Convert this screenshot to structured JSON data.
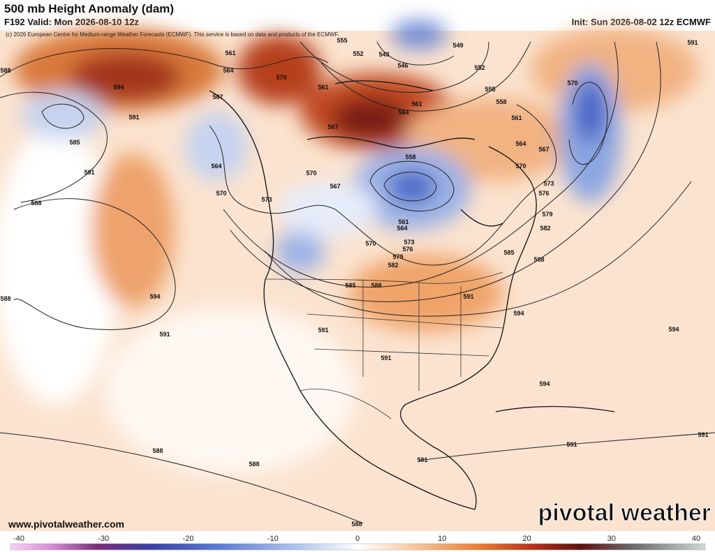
{
  "header": {
    "title": "500 mb Height Anomaly (dam)",
    "valid": "F192 Valid: Mon 2026-08-10 12z",
    "init": "Init: Sun 2026-08-02 12z ECMWF",
    "credit": "(c) 2026 European Centre for Medium-range Weather Forecasts (ECMWF). This service is based on data and products of the ECMWF."
  },
  "map": {
    "contour_labels": [
      "561",
      "564",
      "570",
      "567",
      "594",
      "591",
      "588",
      "585",
      "591",
      "588",
      "564",
      "570",
      "573",
      "594",
      "591",
      "588",
      "555",
      "552",
      "543",
      "546",
      "549",
      "552",
      "555",
      "558",
      "561",
      "567",
      "561",
      "564",
      "561",
      "564",
      "567",
      "570",
      "573",
      "576",
      "579",
      "582",
      "585",
      "588",
      "594",
      "594",
      "570",
      "591",
      "558",
      "570",
      "567",
      "561",
      "564",
      "570",
      "573",
      "576",
      "579",
      "582",
      "585",
      "588",
      "591",
      "591",
      "591",
      "594",
      "591",
      "591",
      "591",
      "588",
      "588",
      "588"
    ]
  },
  "footer": {
    "website": "www.pivotalweather.com",
    "brand": "pivotal weather"
  },
  "colorbar": {
    "ticks": [
      -40,
      -30,
      -20,
      -10,
      0,
      10,
      20,
      30,
      40
    ]
  }
}
